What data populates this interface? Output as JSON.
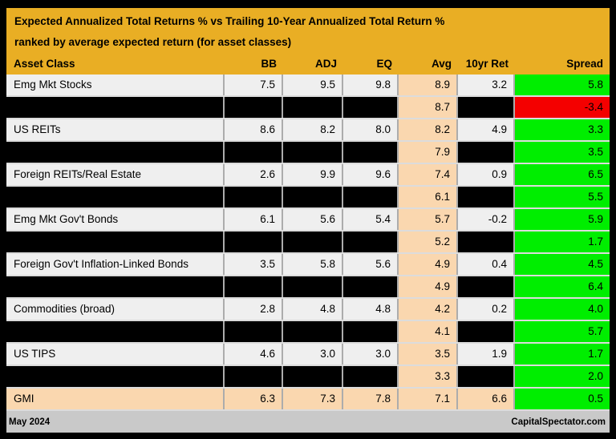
{
  "chart_data": {
    "type": "table",
    "title": "Expected Annualized Total Returns % vs Trailing 10-Year Annualized Total Return %",
    "subtitle": "ranked by average expected return (for asset classes)",
    "columns": [
      "Asset Class",
      "BB",
      "ADJ",
      "EQ",
      "Avg",
      "10yr Ret",
      "Spread"
    ],
    "rows": [
      {
        "asset": "Emg Mkt Stocks",
        "bb": "7.5",
        "adj": "9.5",
        "eq": "9.8",
        "avg": "8.9",
        "ret10": "3.2",
        "spread": "5.8",
        "row_style": "normal",
        "spread_style": "positive"
      },
      {
        "asset": "",
        "bb": "",
        "adj": "",
        "eq": "",
        "avg": "8.7",
        "ret10": "",
        "spread": "-3.4",
        "row_style": "redacted",
        "spread_style": "negative"
      },
      {
        "asset": "US REITs",
        "bb": "8.6",
        "adj": "8.2",
        "eq": "8.0",
        "avg": "8.2",
        "ret10": "4.9",
        "spread": "3.3",
        "row_style": "normal",
        "spread_style": "positive"
      },
      {
        "asset": "",
        "bb": "",
        "adj": "",
        "eq": "",
        "avg": "7.9",
        "ret10": "",
        "spread": "3.5",
        "row_style": "redacted",
        "spread_style": "positive"
      },
      {
        "asset": "Foreign REITs/Real Estate",
        "bb": "2.6",
        "adj": "9.9",
        "eq": "9.6",
        "avg": "7.4",
        "ret10": "0.9",
        "spread": "6.5",
        "row_style": "normal",
        "spread_style": "positive"
      },
      {
        "asset": "",
        "bb": "",
        "adj": "",
        "eq": "",
        "avg": "6.1",
        "ret10": "",
        "spread": "5.5",
        "row_style": "redacted",
        "spread_style": "positive"
      },
      {
        "asset": "Emg Mkt Gov't Bonds",
        "bb": "6.1",
        "adj": "5.6",
        "eq": "5.4",
        "avg": "5.7",
        "ret10": "-0.2",
        "spread": "5.9",
        "row_style": "normal",
        "spread_style": "positive"
      },
      {
        "asset": "",
        "bb": "",
        "adj": "",
        "eq": "",
        "avg": "5.2",
        "ret10": "",
        "spread": "1.7",
        "row_style": "redacted",
        "spread_style": "positive"
      },
      {
        "asset": "Foreign Gov't Inflation-Linked Bonds",
        "bb": "3.5",
        "adj": "5.8",
        "eq": "5.6",
        "avg": "4.9",
        "ret10": "0.4",
        "spread": "4.5",
        "row_style": "normal",
        "spread_style": "positive"
      },
      {
        "asset": "",
        "bb": "",
        "adj": "",
        "eq": "",
        "avg": "4.9",
        "ret10": "",
        "spread": "6.4",
        "row_style": "redacted",
        "spread_style": "positive"
      },
      {
        "asset": "Commodities (broad)",
        "bb": "2.8",
        "adj": "4.8",
        "eq": "4.8",
        "avg": "4.2",
        "ret10": "0.2",
        "spread": "4.0",
        "row_style": "normal",
        "spread_style": "positive"
      },
      {
        "asset": "",
        "bb": "",
        "adj": "",
        "eq": "",
        "avg": "4.1",
        "ret10": "",
        "spread": "5.7",
        "row_style": "redacted",
        "spread_style": "positive"
      },
      {
        "asset": "US TIPS",
        "bb": "4.6",
        "adj": "3.0",
        "eq": "3.0",
        "avg": "3.5",
        "ret10": "1.9",
        "spread": "1.7",
        "row_style": "normal",
        "spread_style": "positive"
      },
      {
        "asset": "",
        "bb": "",
        "adj": "",
        "eq": "",
        "avg": "3.3",
        "ret10": "",
        "spread": "2.0",
        "row_style": "redacted",
        "spread_style": "positive"
      },
      {
        "asset": "GMI",
        "bb": "6.3",
        "adj": "7.3",
        "eq": "7.8",
        "avg": "7.1",
        "ret10": "6.6",
        "spread": "0.5",
        "row_style": "highlight",
        "spread_style": "positive"
      }
    ]
  },
  "footer": {
    "left": "May 2024",
    "right": "CapitalSpectator.com"
  },
  "colors": {
    "background_gold": "#E9AE24",
    "row_gray": "#EFEFEF",
    "redacted_black": "#000000",
    "avg_peach": "#FAD7AF",
    "highlight_peach": "#FAD7AF",
    "spread_positive_green": "#00EE00",
    "spread_negative_red": "#F40000",
    "footer_gray": "#C9C9C9",
    "frame_border_black": "#000000"
  }
}
